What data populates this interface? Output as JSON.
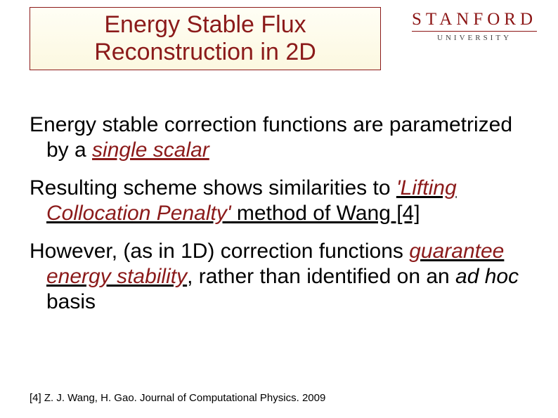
{
  "title": "Energy Stable Flux Reconstruction in 2D",
  "logo": {
    "main": "STANFORD",
    "sub": "UNIVERSITY"
  },
  "paragraphs": {
    "p1_a": "Energy stable correction functions are parametrized by a ",
    "p1_b": "single scalar",
    "p2_a": "Resulting scheme shows similarities to ",
    "p2_b": "'Lifting Collocation Penalty'",
    "p2_c": " method of Wang [4]",
    "p3_a": "However, (as in 1D) correction functions ",
    "p3_b": "guarantee energy stability",
    "p3_c": ", rather than identified on an ",
    "p3_d": "ad hoc",
    "p3_e": " basis"
  },
  "footnote": "[4] Z. J. Wang, H. Gao. Journal of Computational Physics. 2009",
  "colors": {
    "cardinal": "#8c1515",
    "title_text": "#8b1a1a",
    "emph": "#8b1a1a",
    "background": "#ffffff"
  }
}
